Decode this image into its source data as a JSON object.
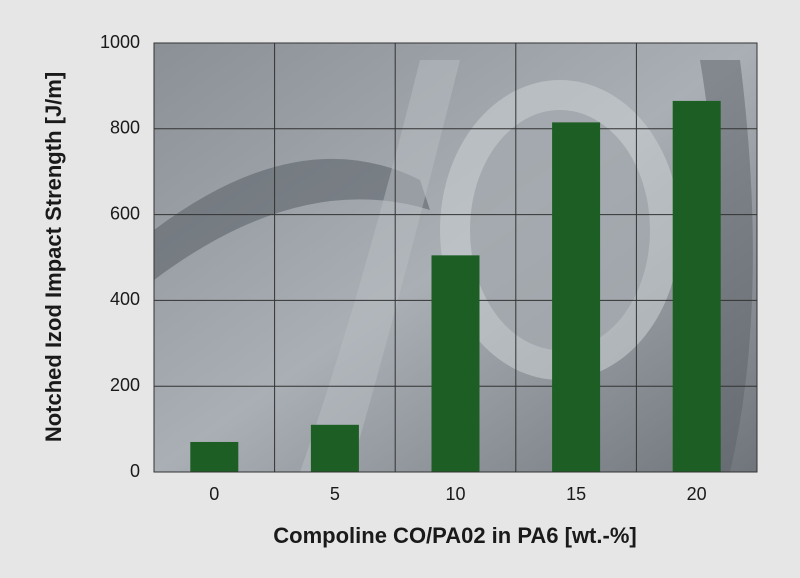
{
  "chart_data": {
    "type": "bar",
    "x_label": "Compoline CO/PA02 in PA6 [wt.-%]",
    "y_label": "Notched Izod Impact Strength [J/m]",
    "categories": [
      "0",
      "5",
      "10",
      "15",
      "20"
    ],
    "values": [
      70,
      110,
      505,
      815,
      865
    ],
    "color": "#1d5e24",
    "ylim": [
      0,
      1000
    ],
    "yticks": [
      0,
      200,
      400,
      600,
      800,
      1000
    ],
    "grid": true
  }
}
